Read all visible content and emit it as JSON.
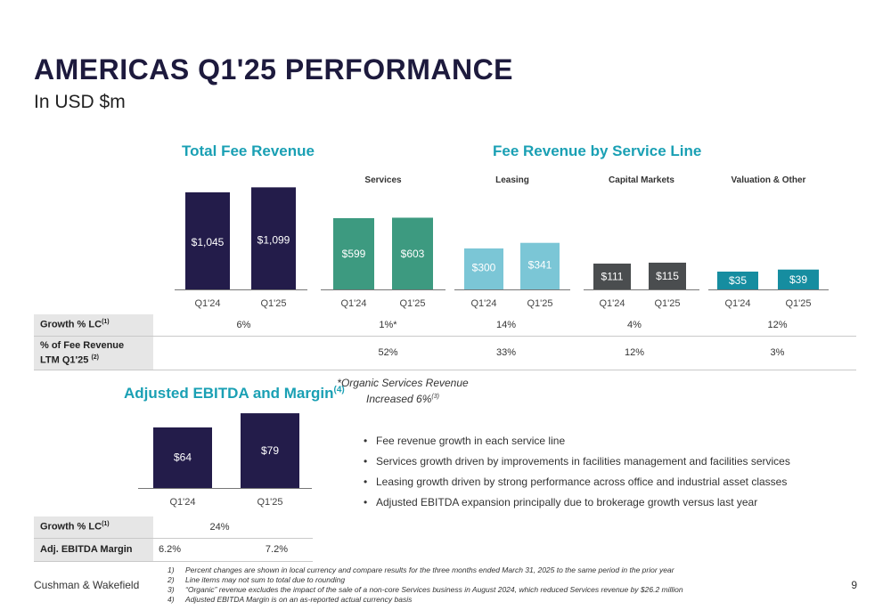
{
  "title": "AMERICAS Q1'25 PERFORMANCE",
  "subtitle": "In USD $m",
  "sections": {
    "total_fee": "Total Fee Revenue",
    "by_service": "Fee Revenue by Service Line",
    "ebitda": "Adjusted EBITDA and Margin",
    "ebitda_sup": "(4)"
  },
  "colors": {
    "title": "#1d1a3d",
    "accent": "#1aa0b4",
    "total": "#231c4a",
    "services": "#3d9a80",
    "leasing": "#7bc6d6",
    "capital": "#4a4d4f",
    "valuation": "#168da0",
    "ebitda": "#231c4a"
  },
  "chart_data": [
    {
      "type": "bar",
      "title": "Total Fee Revenue",
      "categories": [
        "Q1'24",
        "Q1'25"
      ],
      "values": [
        1045,
        1099
      ],
      "labels": [
        "$1,045",
        "$1,099"
      ]
    },
    {
      "type": "bar",
      "title": "Services",
      "categories": [
        "Q1'24",
        "Q1'25"
      ],
      "values": [
        599,
        603
      ],
      "labels": [
        "$599",
        "$603"
      ]
    },
    {
      "type": "bar",
      "title": "Leasing",
      "categories": [
        "Q1'24",
        "Q1'25"
      ],
      "values": [
        300,
        341
      ],
      "labels": [
        "$300",
        "$341"
      ]
    },
    {
      "type": "bar",
      "title": "Capital Markets",
      "categories": [
        "Q1'24",
        "Q1'25"
      ],
      "values": [
        111,
        115
      ],
      "labels": [
        "$111",
        "$115"
      ]
    },
    {
      "type": "bar",
      "title": "Valuation & Other",
      "categories": [
        "Q1'24",
        "Q1'25"
      ],
      "values": [
        35,
        39
      ],
      "labels": [
        "$35",
        "$39"
      ]
    },
    {
      "type": "bar",
      "title": "Adjusted EBITDA and Margin",
      "categories": [
        "Q1'24",
        "Q1'25"
      ],
      "values": [
        64,
        79
      ],
      "labels": [
        "$64",
        "$79"
      ]
    }
  ],
  "metrics_table": {
    "rows": [
      {
        "label": "Growth % LC",
        "sup": "(1)",
        "values": [
          "6%",
          "1%*",
          "14%",
          "4%",
          "12%"
        ]
      },
      {
        "label": "% of Fee Revenue",
        "label2": "LTM Q1'25",
        "sup": "(2)",
        "values": [
          "",
          "52%",
          "33%",
          "12%",
          "3%"
        ]
      }
    ]
  },
  "ebitda_table": {
    "rows": [
      {
        "label": "Growth % LC",
        "sup": "(1)",
        "values": [
          "24%"
        ]
      },
      {
        "label": "Adj. EBITDA Margin",
        "values": [
          "6.2%",
          "7.2%"
        ]
      }
    ]
  },
  "organic_note": {
    "line1": "*Organic Services Revenue",
    "line2": "Increased 6%",
    "sup": "(3)"
  },
  "bullets": [
    "Fee revenue growth in each service line",
    "Services growth driven by improvements in facilities management and facilities services",
    "Leasing growth driven by strong performance across office and industrial asset classes",
    "Adjusted EBITDA expansion principally due to brokerage growth versus last year"
  ],
  "footer": {
    "company": "Cushman & Wakefield",
    "page": "9",
    "footnotes": [
      {
        "num": "1)",
        "text": "Percent changes are shown in local currency and compare results for the three months ended March 31, 2025 to the same period in the prior year"
      },
      {
        "num": "2)",
        "text": "Line items may not sum to total due to rounding"
      },
      {
        "num": "3)",
        "text": "“Organic” revenue excludes the impact of the sale of a non-core Services business in August 2024, which reduced Services revenue by $26.2 million"
      },
      {
        "num": "4)",
        "text": "Adjusted EBITDA Margin is on an as-reported actual currency basis"
      }
    ]
  }
}
